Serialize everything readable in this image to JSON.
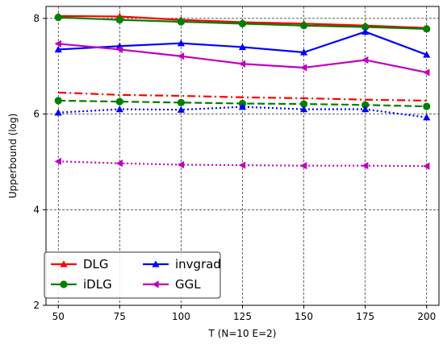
{
  "chart_data": {
    "type": "line",
    "xlabel": "T (N=10 E=2)",
    "ylabel": "Upperbound (log)",
    "x": [
      50,
      75,
      100,
      125,
      150,
      175,
      200
    ],
    "xlim": [
      45,
      205
    ],
    "ylim": [
      2,
      8.25
    ],
    "xticks": [
      50,
      75,
      100,
      125,
      150,
      175,
      200
    ],
    "yticks": [
      2,
      4,
      6,
      8
    ],
    "grid": true,
    "legend_position": "lower-left",
    "series": [
      {
        "name": "DLG",
        "color": "#ff0000",
        "marker": "triangle-up",
        "style": "solid",
        "in_legend": true,
        "values": [
          8.05,
          8.04,
          7.97,
          7.92,
          7.89,
          7.85,
          7.8
        ]
      },
      {
        "name": "iDLG",
        "color": "#008000",
        "marker": "circle",
        "style": "solid",
        "in_legend": true,
        "values": [
          8.02,
          7.97,
          7.93,
          7.89,
          7.85,
          7.82,
          7.78
        ]
      },
      {
        "name": "invgrad",
        "color": "#0000ff",
        "marker": "triangle-up",
        "style": "solid",
        "in_legend": true,
        "values": [
          7.35,
          7.42,
          7.48,
          7.4,
          7.29,
          7.72,
          7.24
        ]
      },
      {
        "name": "GGL",
        "color": "#bf00bf",
        "marker": "triangle-left",
        "style": "solid",
        "in_legend": true,
        "values": [
          7.47,
          7.35,
          7.21,
          7.05,
          6.97,
          7.13,
          6.87
        ]
      },
      {
        "name": "",
        "color": "#ff0000",
        "marker": "none",
        "style": "dashdot",
        "in_legend": false,
        "values": [
          6.45,
          6.4,
          6.38,
          6.35,
          6.33,
          6.3,
          6.28
        ]
      },
      {
        "name": "",
        "color": "#008000",
        "marker": "circle",
        "style": "dashed",
        "in_legend": false,
        "values": [
          6.28,
          6.26,
          6.24,
          6.22,
          6.21,
          6.19,
          6.16
        ]
      },
      {
        "name": "",
        "color": "#0000ff",
        "marker": "triangle-up",
        "style": "dotted",
        "in_legend": false,
        "values": [
          6.03,
          6.1,
          6.09,
          6.15,
          6.1,
          6.1,
          5.93
        ]
      },
      {
        "name": "",
        "color": "#bf00bf",
        "marker": "triangle-left",
        "style": "dotted",
        "in_legend": false,
        "values": [
          5.01,
          4.97,
          4.94,
          4.93,
          4.92,
          4.92,
          4.91
        ]
      }
    ]
  }
}
